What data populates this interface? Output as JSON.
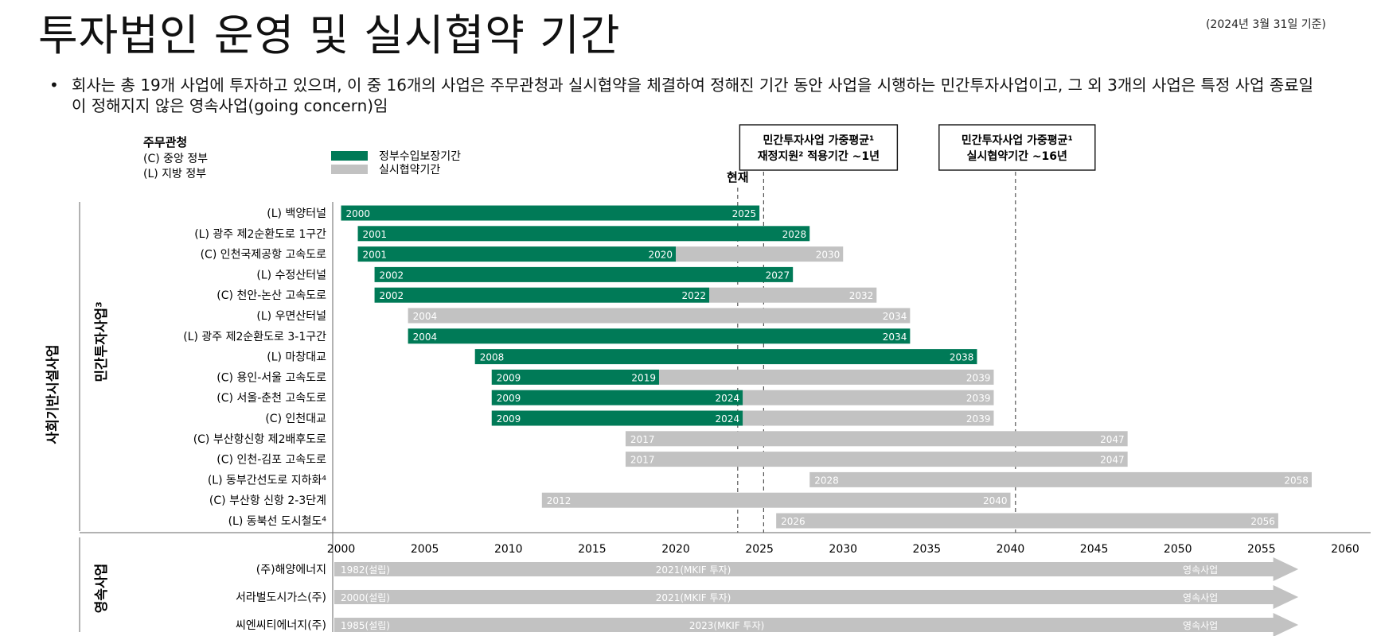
{
  "header": {
    "title": "투자법인 운영 및 실시협약 기간",
    "as_of": "(2024년 3월 31일 기준)",
    "bullet": "회사는 총 19개 사업에 투자하고 있으며, 이 중 16개의 사업은 주무관청과 실시협약을 체결하여 정해진 기간 동안 사업을 시행하는 민간투자사업이고, 그 외 3개의 사업은 특정 사업 종료일이 정해지지 않은 영속사업(going concern)임"
  },
  "legend": {
    "authority_title": "주무관청",
    "authority_items": [
      "(C) 중앙 정부",
      "(L) 지방 정부"
    ],
    "series": [
      {
        "name": "정부수입보장기간",
        "color": "#007a57"
      },
      {
        "name": "실시협약기간",
        "color": "#c2c2c2"
      }
    ]
  },
  "callouts": [
    {
      "lines": [
        "민간투자사업 가중평균¹",
        "재정지원² 적용기간 ~1년"
      ]
    },
    {
      "lines": [
        "민간투자사업 가중평균¹",
        "실시협약기간 ~16년"
      ]
    }
  ],
  "current_label": "현재",
  "group_labels": {
    "outer": "사회기반시설사업",
    "ppp": "민간투자사업³",
    "going": "영속사업"
  },
  "chart_data": {
    "type": "gantt",
    "xlim": [
      1999.5,
      2060
    ],
    "x_ticks": [
      2000,
      2005,
      2010,
      2015,
      2020,
      2025,
      2030,
      2035,
      2040,
      2045,
      2050,
      2055,
      2060
    ],
    "reference_lines": {
      "current": 2023.7,
      "avg_support_end": 2025.25,
      "avg_agreement_end": 2040.3
    },
    "colors": {
      "guarantee": "#007a57",
      "agreement": "#c2c2c2",
      "going": "#c2c2c2"
    },
    "projects": [
      {
        "name": "(L) 백양터널",
        "start": 2000,
        "guarantee_end": 2025,
        "agreement_end": 2025,
        "labels": [
          "2000",
          "2025"
        ]
      },
      {
        "name": "(L) 광주 제2순환도로 1구간",
        "start": 2001,
        "guarantee_end": 2028,
        "agreement_end": 2028,
        "labels": [
          "2001",
          "2028"
        ]
      },
      {
        "name": "(C) 인천국제공항 고속도로",
        "start": 2001,
        "guarantee_end": 2020,
        "agreement_end": 2030,
        "labels": [
          "2001",
          "2020",
          "2030"
        ]
      },
      {
        "name": "(L) 수정산터널",
        "start": 2002,
        "guarantee_end": 2027,
        "agreement_end": 2027,
        "labels": [
          "2002",
          "2027"
        ]
      },
      {
        "name": "(C) 천안-논산 고속도로",
        "start": 2002,
        "guarantee_end": 2022,
        "agreement_end": 2032,
        "labels": [
          "2002",
          "2022",
          "2032"
        ]
      },
      {
        "name": "(L) 우면산터널",
        "start": 2004,
        "guarantee_end": null,
        "agreement_end": 2034,
        "labels": [
          "2004",
          "2034"
        ]
      },
      {
        "name": "(L) 광주 제2순환도로 3-1구간",
        "start": 2004,
        "guarantee_end": 2034,
        "agreement_end": 2034,
        "labels": [
          "2004",
          "2034"
        ]
      },
      {
        "name": "(L) 마창대교",
        "start": 2008,
        "guarantee_end": 2038,
        "agreement_end": 2038,
        "labels": [
          "2008",
          "2038"
        ]
      },
      {
        "name": "(C) 용인-서울 고속도로",
        "start": 2009,
        "guarantee_end": 2019,
        "agreement_end": 2039,
        "labels": [
          "2009",
          "2019",
          "2039"
        ]
      },
      {
        "name": "(C) 서울-춘천 고속도로",
        "start": 2009,
        "guarantee_end": 2024,
        "agreement_end": 2039,
        "labels": [
          "2009",
          "2024",
          "2039"
        ]
      },
      {
        "name": "(C) 인천대교",
        "start": 2009,
        "guarantee_end": 2024,
        "agreement_end": 2039,
        "labels": [
          "2009",
          "2024",
          "2039"
        ]
      },
      {
        "name": "(C) 부산항신항 제2배후도로",
        "start": 2017,
        "guarantee_end": null,
        "agreement_end": 2047,
        "labels": [
          "2017",
          "2047"
        ]
      },
      {
        "name": "(C) 인천-김포 고속도로",
        "start": 2017,
        "guarantee_end": null,
        "agreement_end": 2047,
        "labels": [
          "2017",
          "2047"
        ]
      },
      {
        "name": "(L) 동부간선도로 지하화⁴",
        "start": 2028,
        "guarantee_end": null,
        "agreement_end": 2058,
        "labels": [
          "2028",
          "2058"
        ]
      },
      {
        "name": "(C) 부산항 신항 2-3단계",
        "start": 2012,
        "guarantee_end": null,
        "agreement_end": 2040,
        "labels": [
          "2012",
          "2040"
        ]
      },
      {
        "name": "(L) 동북선 도시철도⁴",
        "start": 2026,
        "guarantee_end": null,
        "agreement_end": 2056,
        "labels": [
          "2026",
          "2056"
        ]
      }
    ],
    "going_concerns": [
      {
        "name": "(주)해양에너지",
        "labels": [
          "1982(설립)",
          "2021(MKIF 투자)",
          "영속사업"
        ]
      },
      {
        "name": "서라벌도시가스(주)",
        "labels": [
          "2000(설립)",
          "2021(MKIF 투자)",
          "영속사업"
        ]
      },
      {
        "name": "씨엔씨티에너지(주)",
        "labels": [
          "1985(설립)",
          "2023(MKIF 투자)",
          "영속사업"
        ]
      }
    ]
  }
}
